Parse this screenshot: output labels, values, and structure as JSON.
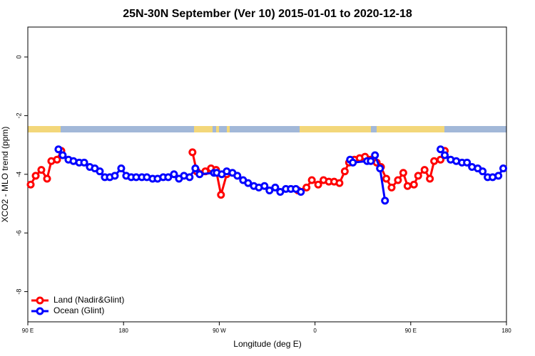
{
  "chart_data": {
    "type": "line",
    "title": "25N-30N September (Ver 10)   2015-01-01 to 2020-12-18",
    "x_label": "Longitude (deg E)",
    "y_label": "XCO2 - MLO trend (ppm)",
    "xlim": [
      90,
      540
    ],
    "ylim": [
      -9.03,
      1.02
    ],
    "xticks": [
      {
        "value": 90,
        "label": "90 E"
      },
      180,
      {
        "value": 270,
        "label": "90 W"
      },
      {
        "value": 360,
        "label": "0"
      },
      {
        "value": 450,
        "label": "90 E"
      },
      {
        "value": 540,
        "label": "180"
      }
    ],
    "yticks": [
      0,
      -2,
      -4,
      -6,
      -8
    ],
    "legend": "bottom-left",
    "series": [
      {
        "name": "Land (Nadir&Glint)",
        "color": "#ff0000",
        "x": [
          92.7,
          97.4,
          102.7,
          108.1,
          112.1,
          117.5,
          121.5,
          200,
          244.8,
          248.8,
          256.9,
          262.2,
          267,
          271.6,
          277,
          310,
          344,
          352,
          357,
          363,
          368,
          373,
          378,
          383,
          388,
          392,
          397,
          402,
          407,
          412,
          418,
          422,
          427,
          432,
          438,
          443,
          447,
          453,
          457,
          463,
          468,
          472,
          478,
          482
        ],
        "values": [
          -4.35,
          -4.05,
          -3.85,
          -4.15,
          -3.55,
          -3.5,
          -3.2,
          null,
          -3.25,
          -3.9,
          -3.9,
          -3.8,
          -3.85,
          -4.7,
          -4.0,
          null,
          -4.55,
          -4.45,
          -4.2,
          -4.35,
          -4.2,
          -4.25,
          -4.25,
          -4.3,
          -3.9,
          -3.6,
          -3.5,
          -3.45,
          -3.4,
          -3.5,
          -3.6,
          -3.75,
          -4.15,
          -4.45,
          -4.2,
          -3.95,
          -4.4,
          -4.35,
          -4.05,
          -3.85,
          -4.15,
          -3.55,
          -3.5,
          -3.2
        ]
      },
      {
        "name": "Ocean (Glint)",
        "color": "#0000ff",
        "x": [
          118.8,
          122.8,
          128.2,
          132.9,
          138.3,
          143,
          148.3,
          153,
          157.7,
          162.4,
          167.1,
          171.8,
          177.8,
          182.5,
          187.2,
          191.9,
          197.2,
          201.9,
          207.3,
          212,
          217.3,
          222,
          227.4,
          232.1,
          236.8,
          242.1,
          247.5,
          251.5,
          265,
          267.6,
          272.3,
          277,
          282.4,
          287,
          292.4,
          297.1,
          302.5,
          307.2,
          312.5,
          317.2,
          322.6,
          327.3,
          332.6,
          337.3,
          342,
          346.7,
          370,
          393,
          395.6,
          409,
          412.4,
          416.4,
          421.1,
          425.8,
          450,
          478,
          482,
          487.5,
          492.8,
          498.2,
          502.9,
          507.6,
          513,
          517.6,
          522.3,
          527,
          532.4,
          537
        ],
        "values": [
          -3.15,
          -3.35,
          -3.5,
          -3.55,
          -3.6,
          -3.6,
          -3.75,
          -3.8,
          -3.9,
          -4.1,
          -4.1,
          -4.05,
          -3.8,
          -4.05,
          -4.1,
          -4.1,
          -4.1,
          -4.1,
          -4.15,
          -4.15,
          -4.1,
          -4.1,
          -4.0,
          -4.15,
          -4.05,
          -4.1,
          -3.8,
          -4.0,
          -3.95,
          -3.95,
          -4.0,
          -3.9,
          -3.95,
          -4.05,
          -4.2,
          -4.3,
          -4.4,
          -4.45,
          -4.4,
          -4.55,
          -4.45,
          -4.6,
          -4.5,
          -4.5,
          -4.5,
          -4.6,
          null,
          -3.5,
          -3.6,
          -3.55,
          -3.55,
          -3.35,
          -3.8,
          -4.9,
          null,
          -3.15,
          -3.35,
          -3.5,
          -3.55,
          -3.6,
          -3.6,
          -3.75,
          -3.8,
          -3.9,
          -4.1,
          -4.1,
          -4.05,
          -3.8
        ]
      }
    ]
  }
}
